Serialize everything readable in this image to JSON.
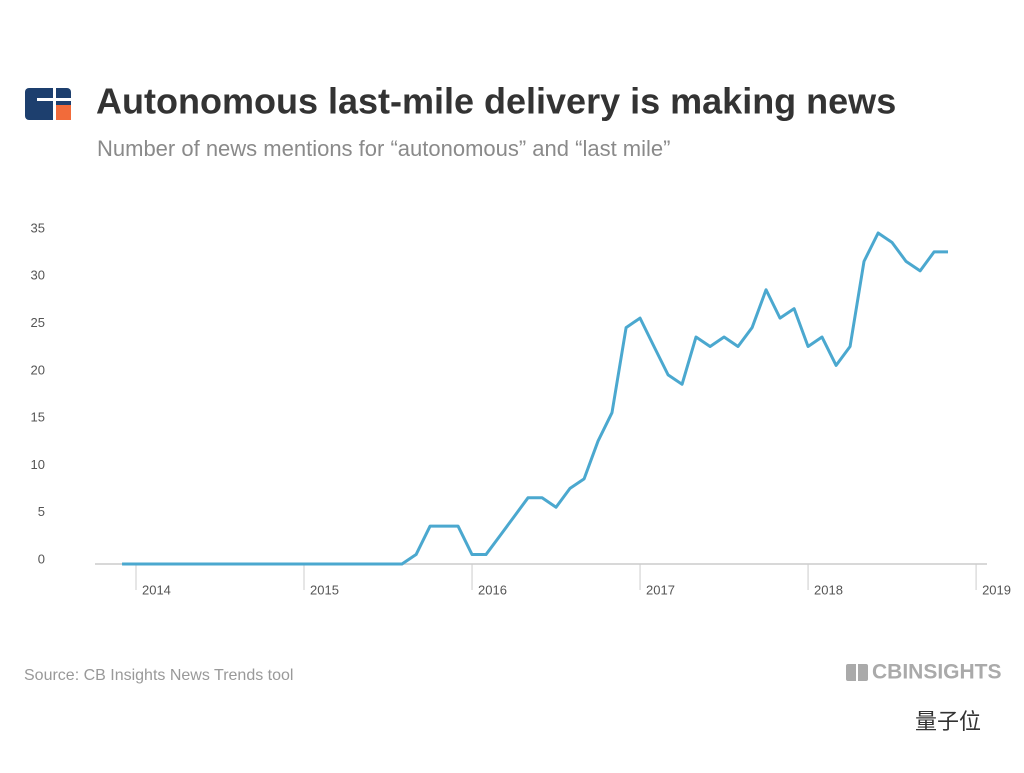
{
  "chart_data": {
    "type": "line",
    "title": "Autonomous last-mile delivery is making news",
    "subtitle": "Number of news mentions for “autonomous” and “last mile”",
    "source": "Source: CB Insights News Trends tool",
    "brand": "CBINSIGHTS",
    "watermark": "量子位",
    "x": [
      2013.917,
      2014.0,
      2014.083,
      2014.167,
      2014.25,
      2014.333,
      2014.417,
      2014.5,
      2014.583,
      2014.667,
      2014.75,
      2014.833,
      2014.917,
      2015.0,
      2015.083,
      2015.167,
      2015.25,
      2015.333,
      2015.417,
      2015.5,
      2015.583,
      2015.667,
      2015.75,
      2015.833,
      2015.917,
      2016.0,
      2016.083,
      2016.167,
      2016.25,
      2016.333,
      2016.417,
      2016.5,
      2016.583,
      2016.667,
      2016.75,
      2016.833,
      2016.917,
      2017.0,
      2017.083,
      2017.167,
      2017.25,
      2017.333,
      2017.417,
      2017.5,
      2017.583,
      2017.667,
      2017.75,
      2017.833,
      2017.917,
      2018.0,
      2018.083,
      2018.167,
      2018.25,
      2018.333,
      2018.417,
      2018.5,
      2018.583,
      2018.667,
      2018.75,
      2018.833
    ],
    "series": [
      {
        "name": "News mentions",
        "color": "#4ba8cf",
        "values": [
          0,
          0,
          0,
          0,
          0,
          0,
          0,
          0,
          0,
          0,
          0,
          0,
          0,
          0,
          0,
          0,
          0,
          0,
          0,
          0,
          0,
          1,
          4,
          4,
          4,
          1,
          1,
          3,
          5,
          7,
          7,
          6,
          8,
          9,
          13,
          16,
          25,
          26,
          23,
          20,
          19,
          24,
          23,
          24,
          23,
          25,
          29,
          26,
          27,
          23,
          24,
          21,
          23,
          32,
          35,
          34,
          32,
          31,
          33,
          33
        ]
      }
    ],
    "xlim": [
      2013.756,
      2019.065
    ],
    "xticks": [
      2014,
      2015,
      2016,
      2017,
      2018,
      2019
    ],
    "ylim": [
      0,
      35
    ],
    "yticks": [
      0,
      5,
      10,
      15,
      20,
      25,
      30,
      35
    ],
    "grid": false
  }
}
